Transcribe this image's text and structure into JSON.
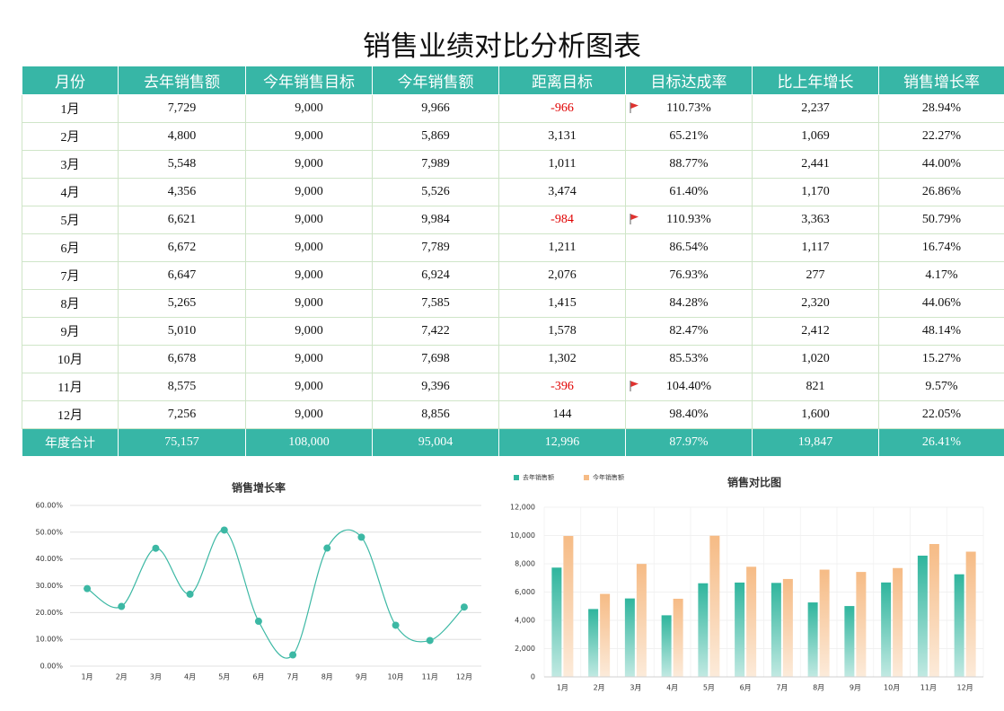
{
  "title": "销售业绩对比分析图表",
  "table": {
    "headers": [
      "月份",
      "去年销售额",
      "今年销售目标",
      "今年销售额",
      "距离目标",
      "目标达成率",
      "比上年增长",
      "销售增长率"
    ],
    "rows": [
      [
        "1月",
        "7,729",
        "9,000",
        "9,966",
        "-966",
        "110.73%",
        "2,237",
        "28.94%"
      ],
      [
        "2月",
        "4,800",
        "9,000",
        "5,869",
        "3,131",
        "65.21%",
        "1,069",
        "22.27%"
      ],
      [
        "3月",
        "5,548",
        "9,000",
        "7,989",
        "1,011",
        "88.77%",
        "2,441",
        "44.00%"
      ],
      [
        "4月",
        "4,356",
        "9,000",
        "5,526",
        "3,474",
        "61.40%",
        "1,170",
        "26.86%"
      ],
      [
        "5月",
        "6,621",
        "9,000",
        "9,984",
        "-984",
        "110.93%",
        "3,363",
        "50.79%"
      ],
      [
        "6月",
        "6,672",
        "9,000",
        "7,789",
        "1,211",
        "86.54%",
        "1,117",
        "16.74%"
      ],
      [
        "7月",
        "6,647",
        "9,000",
        "6,924",
        "2,076",
        "76.93%",
        "277",
        "4.17%"
      ],
      [
        "8月",
        "5,265",
        "9,000",
        "7,585",
        "1,415",
        "84.28%",
        "2,320",
        "44.06%"
      ],
      [
        "9月",
        "5,010",
        "9,000",
        "7,422",
        "1,578",
        "82.47%",
        "2,412",
        "48.14%"
      ],
      [
        "10月",
        "6,678",
        "9,000",
        "7,698",
        "1,302",
        "85.53%",
        "1,020",
        "15.27%"
      ],
      [
        "11月",
        "8,575",
        "9,000",
        "9,396",
        "-396",
        "104.40%",
        "821",
        "9.57%"
      ],
      [
        "12月",
        "7,256",
        "9,000",
        "8,856",
        "144",
        "98.40%",
        "1,600",
        "22.05%"
      ]
    ],
    "total": [
      "年度合计",
      "75,157",
      "108,000",
      "95,004",
      "12,996",
      "87.97%",
      "19,847",
      "26.41%"
    ]
  },
  "chart_data": [
    {
      "type": "line",
      "title": "销售增长率",
      "smooth": true,
      "color": "#3cb8a4",
      "categories": [
        "1月",
        "2月",
        "3月",
        "4月",
        "5月",
        "6月",
        "7月",
        "8月",
        "9月",
        "10月",
        "11月",
        "12月"
      ],
      "values": [
        28.94,
        22.27,
        44.0,
        26.86,
        50.79,
        16.74,
        4.17,
        44.06,
        48.14,
        15.27,
        9.57,
        22.05
      ],
      "ylim": [
        0,
        60
      ],
      "yticks": [
        {
          "value": 0,
          "label": "0.00%"
        },
        {
          "value": 10,
          "label": "10.00%"
        },
        {
          "value": 20,
          "label": "20.00%"
        },
        {
          "value": 30,
          "label": "30.00%"
        },
        {
          "value": 40,
          "label": "40.00%"
        },
        {
          "value": 50,
          "label": "50.00%"
        },
        {
          "value": 60,
          "label": "60.00%"
        }
      ],
      "grid": true
    },
    {
      "type": "bar",
      "title": "销售对比图",
      "legend": "top-left",
      "categories": [
        "1月",
        "2月",
        "3月",
        "4月",
        "5月",
        "6月",
        "7月",
        "8月",
        "9月",
        "10月",
        "11月",
        "12月"
      ],
      "series": [
        {
          "name": "去年销售额",
          "color": "#2fb59d",
          "values": [
            7729,
            4800,
            5548,
            4356,
            6621,
            6672,
            6647,
            5265,
            5010,
            6678,
            8575,
            7256
          ]
        },
        {
          "name": "今年销售额",
          "color": "#f6bb85",
          "values": [
            9966,
            5869,
            7989,
            5526,
            9984,
            7789,
            6924,
            7585,
            7422,
            7698,
            9396,
            8856
          ]
        }
      ],
      "ylim": [
        0,
        12000
      ],
      "yticks": [
        0,
        {
          "value": 2000,
          "label": "2,000"
        },
        {
          "value": 4000,
          "label": "4,000"
        },
        {
          "value": 6000,
          "label": "6,000"
        },
        {
          "value": 8000,
          "label": "8,000"
        },
        {
          "value": 10000,
          "label": "10,000"
        },
        {
          "value": 12000,
          "label": "12,000"
        }
      ],
      "grid": true
    }
  ]
}
